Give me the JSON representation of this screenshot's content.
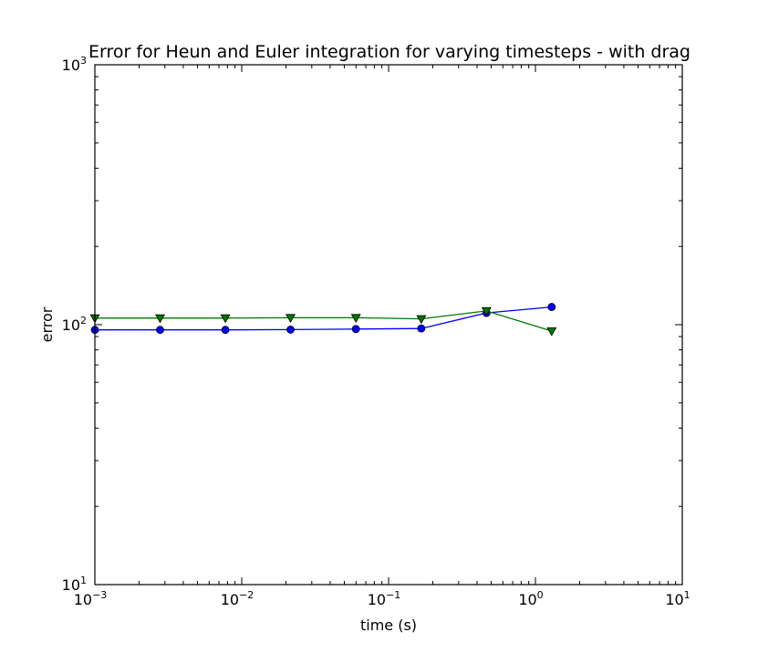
{
  "chart_data": {
    "type": "line",
    "title": "Error for Heun and Euler integration for varying timesteps - with drag",
    "xlabel": "time (s)",
    "ylabel": "error",
    "xscale": "log",
    "yscale": "log",
    "xlim": [
      0.001,
      10
    ],
    "ylim": [
      10,
      1000
    ],
    "grid": false,
    "x_ticks": [
      {
        "value": 0.001,
        "base": "10",
        "exp": "−3"
      },
      {
        "value": 0.01,
        "base": "10",
        "exp": "−2"
      },
      {
        "value": 0.1,
        "base": "10",
        "exp": "−1"
      },
      {
        "value": 1,
        "base": "10",
        "exp": "0"
      },
      {
        "value": 10,
        "base": "10",
        "exp": "1"
      }
    ],
    "y_ticks": [
      {
        "value": 10,
        "base": "10",
        "exp": "1"
      },
      {
        "value": 100,
        "base": "10",
        "exp": "2"
      },
      {
        "value": 1000,
        "base": "10",
        "exp": "3"
      }
    ],
    "series": [
      {
        "color": "#0000ff",
        "marker": "circle",
        "x": [
          0.001,
          0.00278,
          0.00774,
          0.0215,
          0.0599,
          0.167,
          0.464,
          1.29
        ],
        "y": [
          95.5,
          95.5,
          95.5,
          95.7,
          96.2,
          96.7,
          111,
          117
        ]
      },
      {
        "color": "#007700",
        "marker": "triangle-down",
        "x": [
          0.001,
          0.00278,
          0.00774,
          0.0215,
          0.0599,
          0.167,
          0.464,
          1.29
        ],
        "y": [
          106,
          106,
          106,
          106.3,
          106.3,
          105.3,
          113,
          94.5
        ]
      }
    ]
  }
}
